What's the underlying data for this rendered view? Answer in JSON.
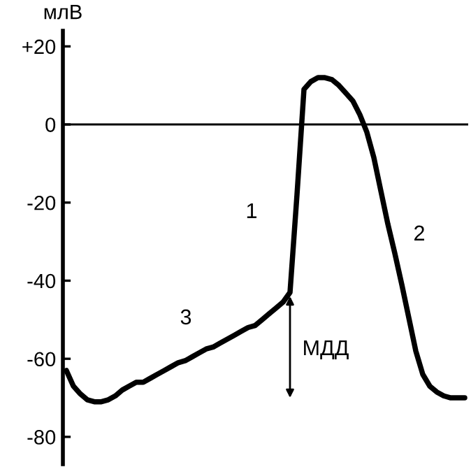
{
  "chart_data": {
    "type": "line",
    "ylabel": "млВ",
    "categories": [
      null,
      null,
      null,
      null,
      null,
      null,
      null,
      null,
      null,
      null,
      null,
      null,
      null,
      null,
      null,
      null,
      null,
      null,
      null,
      null,
      null,
      null,
      null,
      null,
      null,
      null,
      null,
      null,
      null,
      null,
      null,
      null,
      null,
      null,
      null,
      null,
      null,
      null,
      null,
      null,
      null,
      null,
      null,
      null,
      null,
      null,
      null,
      null,
      null,
      null,
      null,
      null,
      null,
      null,
      null,
      null,
      null,
      null
    ],
    "series": [
      {
        "color": "#000000",
        "values": [
          -63,
          -67,
          -69,
          -70.5,
          -71,
          -71,
          -70.5,
          -69.5,
          -68,
          -67,
          -66,
          -66,
          -65,
          -64,
          -63,
          -62,
          -61,
          -60.5,
          -59.5,
          -58.5,
          -57.5,
          -57,
          -56,
          -55,
          -54,
          -53,
          -52,
          -51.5,
          -50,
          -48.5,
          -47,
          -45.5,
          -43,
          -18,
          9,
          11,
          12,
          12,
          11.5,
          10,
          8,
          6,
          2.5,
          -2,
          -8.5,
          -17,
          -25.5,
          -33,
          -41,
          -49.5,
          -58,
          -64,
          -67,
          -68.5,
          -69.5,
          -70,
          -70,
          -70
        ]
      }
    ],
    "ylim": [
      -87,
      24
    ],
    "yticks": [
      {
        "value": 20,
        "label": "+20"
      },
      0,
      -20,
      -40,
      -60,
      -80
    ],
    "tick_labels": "y",
    "ref_lines": [
      {
        "axis": "y",
        "value": 0,
        "color": "#000000"
      }
    ],
    "annotations": [
      "1",
      "2",
      "3",
      "МДД"
    ],
    "grid": false,
    "legend": false,
    "marker": "none",
    "line_style": "solid"
  }
}
